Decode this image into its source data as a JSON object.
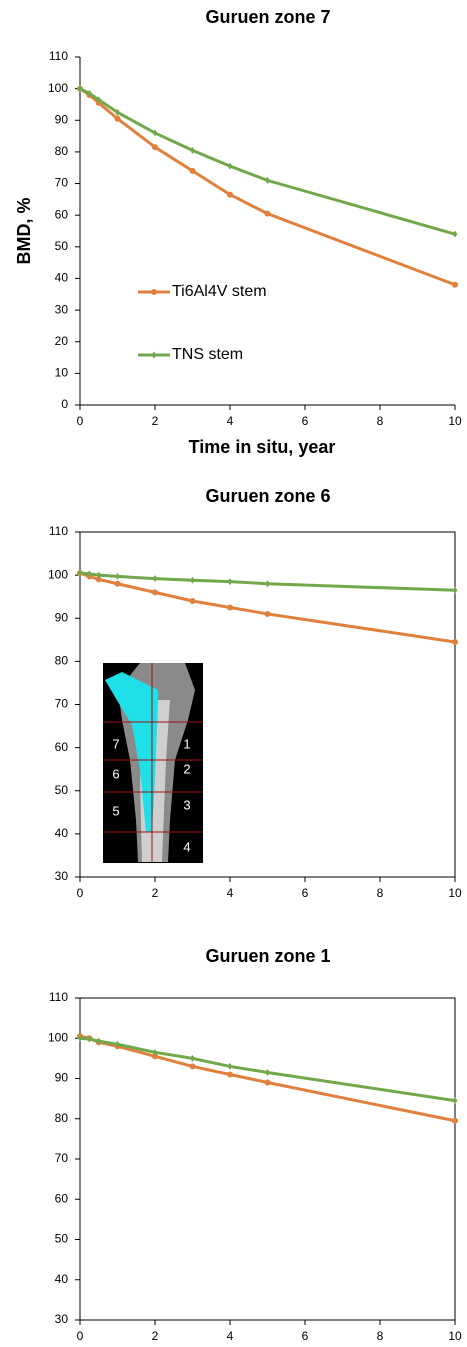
{
  "chart_data": [
    {
      "type": "line",
      "title": "Guruen zone 7",
      "xlabel": "Time in situ, year",
      "ylabel": "BMD, %",
      "x": [
        0,
        0.25,
        0.5,
        1,
        2,
        3,
        4,
        5,
        10
      ],
      "series": [
        {
          "name": "Ti6Al4V stem",
          "color": "#e0803c",
          "marker": "circle",
          "values": [
            100,
            98,
            95.5,
            90.5,
            81.5,
            74,
            66.5,
            60.5,
            38
          ]
        },
        {
          "name": "TNS stem",
          "color": "#72a84c",
          "marker": "diamond",
          "values": [
            100,
            98.5,
            96.5,
            92.5,
            86,
            80.5,
            75.5,
            71,
            54
          ]
        }
      ],
      "xlim": [
        0,
        10
      ],
      "xticks": [
        0,
        2,
        4,
        6,
        8,
        10
      ],
      "ylim": [
        0,
        110
      ],
      "yticks": [
        0,
        10,
        20,
        30,
        40,
        50,
        60,
        70,
        80,
        90,
        100,
        110
      ],
      "legend": "left",
      "frame": false
    },
    {
      "type": "line",
      "title": "Guruen zone 6",
      "x": [
        0,
        0.25,
        0.5,
        1,
        2,
        3,
        4,
        5,
        10
      ],
      "series": [
        {
          "color": "#e0803c",
          "marker": "circle",
          "values": [
            100.5,
            99.7,
            99,
            98,
            96,
            94,
            92.5,
            91,
            84.5
          ]
        },
        {
          "color": "#72a84c",
          "marker": "diamond",
          "values": [
            100.5,
            100.3,
            100,
            99.7,
            99.2,
            98.8,
            98.5,
            98,
            96.5
          ]
        }
      ],
      "xlim": [
        0,
        10
      ],
      "xticks": [
        0,
        2,
        4,
        6,
        8,
        10
      ],
      "ylim": [
        30,
        110
      ],
      "yticks": [
        30,
        40,
        50,
        60,
        70,
        80,
        90,
        100,
        110
      ],
      "frame": true,
      "inset_labels": [
        "7",
        "1",
        "6",
        "2",
        "5",
        "3",
        "4"
      ]
    },
    {
      "type": "line",
      "title": "Guruen zone 1",
      "x": [
        0,
        0.25,
        0.5,
        1,
        2,
        3,
        4,
        5,
        10
      ],
      "series": [
        {
          "color": "#e0803c",
          "marker": "circle",
          "values": [
            100.5,
            100,
            99,
            98,
            95.5,
            93,
            91,
            89,
            79.5
          ]
        },
        {
          "color": "#72a84c",
          "marker": "diamond",
          "values": [
            100,
            99.8,
            99.3,
            98.5,
            96.5,
            95,
            93,
            91.5,
            84.5
          ]
        }
      ],
      "xlim": [
        0,
        10
      ],
      "xticks": [
        0,
        2,
        4,
        6,
        8,
        10
      ],
      "ylim": [
        30,
        110
      ],
      "yticks": [
        30,
        40,
        50,
        60,
        70,
        80,
        90,
        100,
        110
      ],
      "frame": true
    }
  ]
}
